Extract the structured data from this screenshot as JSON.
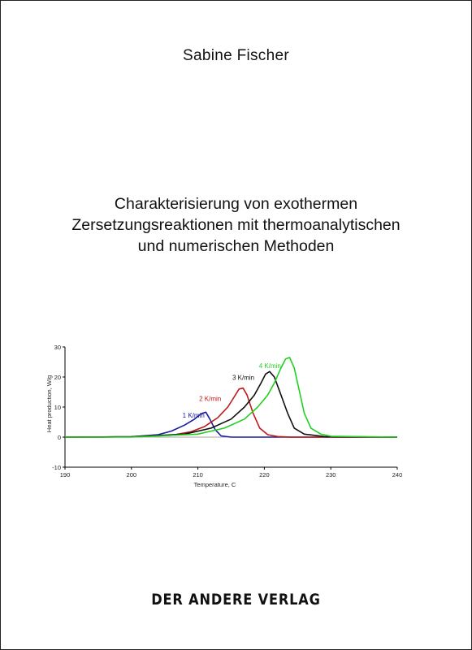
{
  "cover": {
    "author": "Sabine Fischer",
    "title_lines": [
      "Charakterisierung von exothermen",
      "Zersetzungsreaktionen mit thermoanalytischen",
      "und numerischen Methoden"
    ],
    "publisher": "DER ANDERE VERLAG"
  },
  "chart_data": {
    "type": "line",
    "xlabel": "Temperature, C",
    "ylabel": "Heat production, W/g",
    "xlim": [
      190,
      240
    ],
    "ylim": [
      -10,
      30
    ],
    "xticks": [
      190,
      200,
      210,
      220,
      230,
      240
    ],
    "yticks": [
      -10,
      0,
      10,
      20,
      30
    ],
    "grid": false,
    "series": [
      {
        "name": "1 K/min",
        "color": "#1a1aa0",
        "x": [
          190,
          200,
          204,
          206,
          208,
          209.5,
          210.5,
          211.2,
          211.8,
          212.6,
          213.5,
          215,
          240
        ],
        "y": [
          0,
          0.1,
          0.8,
          2,
          4,
          6,
          7.8,
          8.3,
          6,
          2.5,
          0.4,
          0,
          0
        ]
      },
      {
        "name": "2 K/min",
        "color": "#c01818",
        "x": [
          190,
          200,
          206,
          209,
          211,
          213,
          214.5,
          215.5,
          216.2,
          216.8,
          217.4,
          218.3,
          219.3,
          220.5,
          222,
          224,
          240
        ],
        "y": [
          0,
          0.1,
          0.6,
          1.8,
          3.5,
          6.5,
          10,
          13.5,
          16,
          16.3,
          14,
          8,
          3,
          0.8,
          0.2,
          0,
          0
        ]
      },
      {
        "name": "3 K/min",
        "color": "#111111",
        "x": [
          190,
          200,
          208,
          212,
          215,
          217,
          218.5,
          219.5,
          220.2,
          220.8,
          221.5,
          222.5,
          223.5,
          224.5,
          226,
          229,
          240
        ],
        "y": [
          0,
          0.1,
          1,
          3,
          6,
          10,
          14,
          18,
          21,
          21.8,
          20,
          14,
          8,
          3,
          1,
          0.2,
          0
        ]
      },
      {
        "name": "4 K/min",
        "color": "#22d022",
        "x": [
          190,
          200,
          210,
          214,
          217,
          219,
          220.5,
          221.5,
          222.5,
          223.2,
          223.8,
          224.5,
          225.3,
          226,
          227,
          228.5,
          230,
          240
        ],
        "y": [
          0,
          0,
          1,
          3,
          6,
          10,
          14,
          18,
          23,
          26,
          26.5,
          23,
          15,
          8,
          3,
          1,
          0.3,
          0
        ]
      }
    ],
    "annotations": [
      {
        "text": "1 K/min",
        "x": 211,
        "y": 6.5,
        "color": "#1a1aa0"
      },
      {
        "text": "2 K/min",
        "x": 213.5,
        "y": 12,
        "color": "#c01818"
      },
      {
        "text": "3 K/min",
        "x": 218.5,
        "y": 19,
        "color": "#111111"
      },
      {
        "text": "4 K/min",
        "x": 222.5,
        "y": 23,
        "color": "#22d022"
      }
    ]
  }
}
